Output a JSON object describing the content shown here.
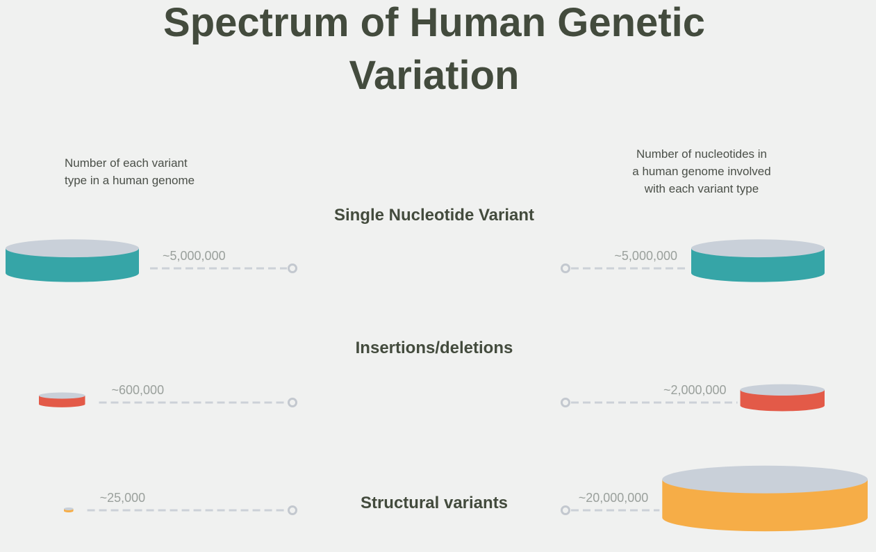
{
  "title": [
    "Spectrum of Human Genetic",
    "Variation"
  ],
  "captions": {
    "left": [
      "Number of each variant",
      "type in a human genome"
    ],
    "right": [
      "Number of nucleotides in",
      "a human genome involved",
      "with each variant type"
    ]
  },
  "colors": {
    "title": "#434b3d",
    "disc_top": "#c9d0d9",
    "snv": "#36a5a7",
    "indel": "#e35a48",
    "sv": "#f6ad47"
  },
  "chart_data": {
    "type": "3d-disc comparison",
    "title": "Spectrum of Human Genetic Variation",
    "categories": [
      "Single Nucleotide Variant",
      "Insertions/deletions",
      "Structural variants"
    ],
    "series": [
      {
        "name": "Number of each variant type in a human genome",
        "values": [
          5000000,
          600000,
          25000
        ],
        "labels": [
          "~5,000,000",
          "~600,000",
          "~25,000"
        ]
      },
      {
        "name": "Number of nucleotides in a human genome involved with each variant type",
        "values": [
          5000000,
          2000000,
          20000000
        ],
        "labels": [
          "~5,000,000",
          "~2,000,000",
          "~20,000,000"
        ]
      }
    ]
  }
}
